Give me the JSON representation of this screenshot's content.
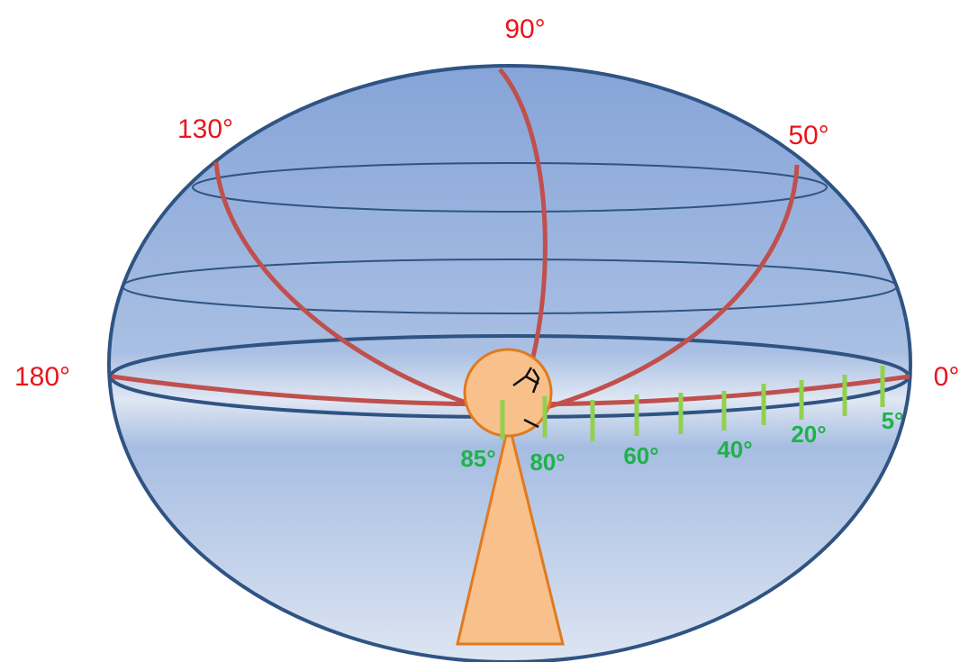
{
  "azimuth_labels": [
    "90°",
    "130°",
    "50°",
    "180°",
    "0°"
  ],
  "elevation_labels": [
    "85°",
    "80°",
    "60°",
    "40°",
    "20°",
    "5°"
  ],
  "colors": {
    "meridian": "#c0504d",
    "outline": "#2f5483",
    "label_red": "#e8151b",
    "label_green": "#1fb24a",
    "tick_green": "#92d050",
    "observer_fill": "#f8c08a",
    "observer_stroke": "#e07a20",
    "sphere_top": "#8aa8da",
    "sphere_bottom": "#dbe4f1"
  }
}
